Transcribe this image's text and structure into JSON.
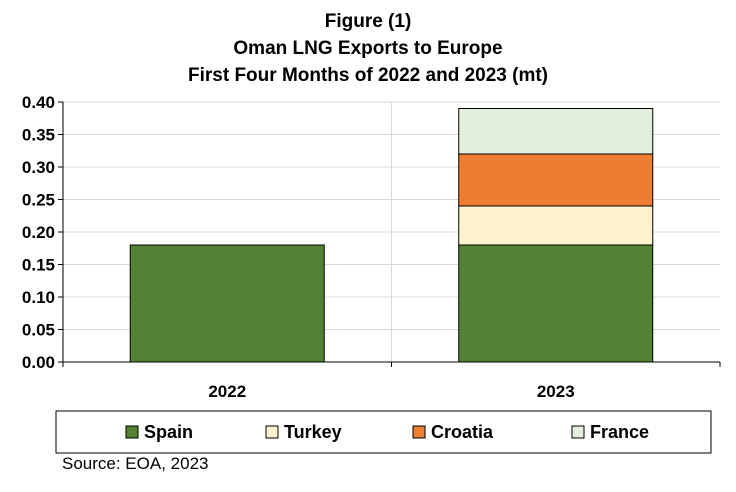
{
  "chart_data": {
    "type": "bar",
    "stacked": true,
    "title": [
      "Figure (1)",
      "Oman LNG Exports to Europe",
      "First Four Months of 2022 and 2023 (mt)"
    ],
    "categories": [
      "2022",
      "2023"
    ],
    "series": [
      {
        "name": "Spain",
        "values": [
          0.18,
          0.18
        ],
        "color": "#548235"
      },
      {
        "name": "Turkey",
        "values": [
          0,
          0.06
        ],
        "color": "#fff2cc"
      },
      {
        "name": "Croatia",
        "values": [
          0,
          0.08
        ],
        "color": "#ed7d31"
      },
      {
        "name": "France",
        "values": [
          0,
          0.07
        ],
        "color": "#e2efda"
      }
    ],
    "yticks": [
      "0.00",
      "0.05",
      "0.10",
      "0.15",
      "0.20",
      "0.25",
      "0.30",
      "0.35",
      "0.40"
    ],
    "ylim": [
      0,
      0.4
    ],
    "grid": true,
    "legend_position": "bottom"
  },
  "source": "Source: EOA, 2023"
}
